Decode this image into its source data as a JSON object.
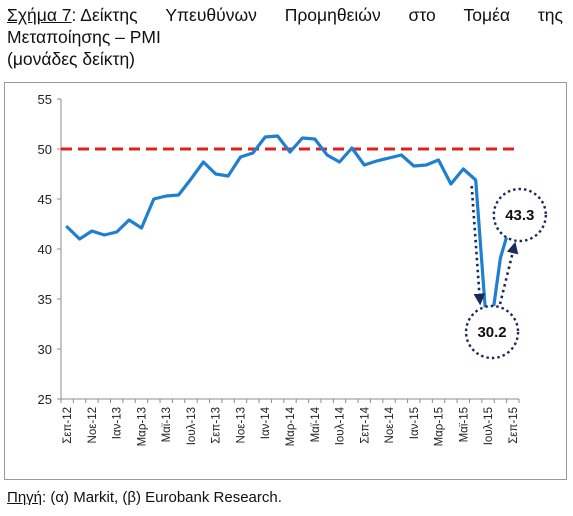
{
  "title": {
    "label": "Σχήμα 7",
    "words_line1": [
      ": Δείκτης",
      "Υπευθύνων",
      "Προμηθειών",
      "στο",
      "Τομέα",
      "της"
    ],
    "line2": "Μεταποίησης – PMI",
    "line3": "(μονάδες δείκτη)"
  },
  "source": {
    "label": "Πηγή",
    "text": ": (α) Markit, (β) Eurobank Research."
  },
  "colors": {
    "series": "#1f7fd0",
    "reference": "#e02020",
    "arrow": "#1a2a5a"
  },
  "chart_data": {
    "type": "line",
    "ylim": [
      25,
      55
    ],
    "yticks": [
      25,
      30,
      35,
      40,
      45,
      50,
      55
    ],
    "grid": false,
    "x_tick_labels": [
      "Σεπ-12",
      "Νοε-12",
      "Ιαν-13",
      "Μαρ-13",
      "Μαϊ-13",
      "Ιουλ-13",
      "Σεπ-13",
      "Νοε-13",
      "Ιαν-14",
      "Μαρ-14",
      "Μαϊ-14",
      "Ιουλ-14",
      "Σεπ-14",
      "Νοε-14",
      "Ιαν-15",
      "Μαρ-15",
      "Μαϊ-15",
      "Ιουλ-15",
      "Σεπ-15"
    ],
    "reference_line": 50,
    "series": [
      {
        "values": [
          42.2,
          41.0,
          41.8,
          41.4,
          41.7,
          42.9,
          42.1,
          45.0,
          45.3,
          45.4,
          47.0,
          48.7,
          47.5,
          47.3,
          49.2,
          49.6,
          51.2,
          51.3,
          49.7,
          51.1,
          51.0,
          49.4,
          48.7,
          50.1,
          48.4,
          48.8,
          49.1,
          49.4,
          48.3,
          48.4,
          48.9,
          46.5,
          48.0,
          46.9,
          30.2,
          39.1,
          43.3
        ]
      }
    ],
    "annotations": [
      {
        "text": "30.2"
      },
      {
        "text": "43.3"
      }
    ]
  }
}
